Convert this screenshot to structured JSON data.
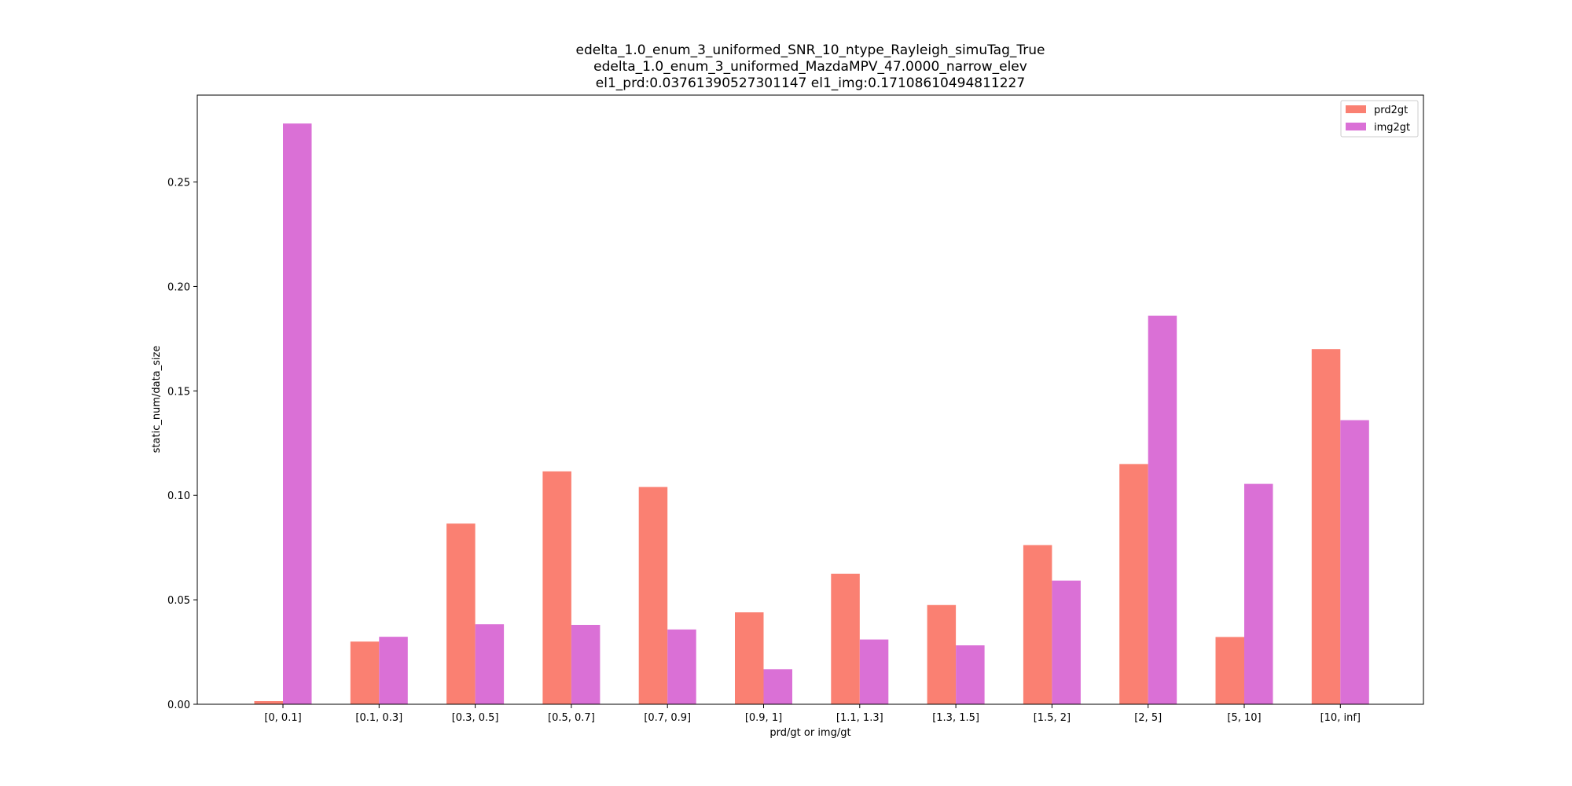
{
  "chart_data": {
    "type": "bar",
    "title_lines": [
      "edelta_1.0_enum_3_uniformed_SNR_10_ntype_Rayleigh_simuTag_True",
      "edelta_1.0_enum_3_uniformed_MazdaMPV_47.0000_narrow_elev",
      "el1_prd:0.03761390527301147  el1_img:0.17108610494811227"
    ],
    "xlabel": "prd/gt or img/gt",
    "ylabel": "static_num/data_size",
    "categories": [
      "[0, 0.1]",
      "[0.1, 0.3]",
      "[0.3, 0.5]",
      "[0.5, 0.7]",
      "[0.7, 0.9]",
      "[0.9, 1]",
      "[1.1, 1.3]",
      "[1.3, 1.5]",
      "[1.5, 2]",
      "[2, 5]",
      "[5, 10]",
      "[10, inf]"
    ],
    "series": [
      {
        "name": "prd2gt",
        "color": "#fa8072",
        "values": [
          0.0015,
          0.03,
          0.0865,
          0.1115,
          0.104,
          0.044,
          0.0625,
          0.0475,
          0.0762,
          0.115,
          0.0322,
          0.17
        ]
      },
      {
        "name": "img2gt",
        "color": "#da70d6",
        "values": [
          0.278,
          0.0323,
          0.0383,
          0.038,
          0.0358,
          0.0168,
          0.031,
          0.0282,
          0.0592,
          0.186,
          0.1055,
          0.136
        ]
      }
    ],
    "ylim": [
      0,
      0.2916
    ],
    "yticks": [
      0.0,
      0.05,
      0.1,
      0.15,
      0.2,
      0.25
    ],
    "ytick_labels": [
      "0.00",
      "0.05",
      "0.10",
      "0.15",
      "0.20",
      "0.25"
    ],
    "grid": false,
    "legend_position": "top-right"
  }
}
